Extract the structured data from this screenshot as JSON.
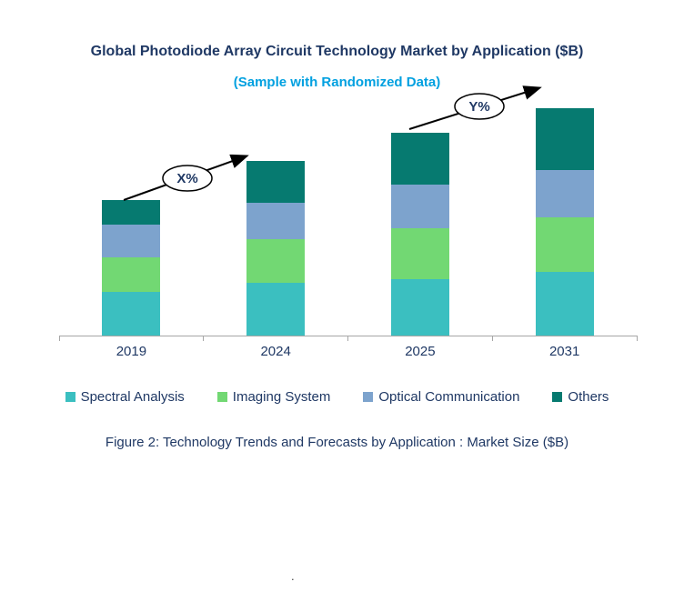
{
  "chart": {
    "title": "Global Photodiode Array Circuit Technology Market by Application ($B)",
    "subtitle": "(Sample with Randomized Data)",
    "caption": "Figure 2: Technology  Trends  and Forecasts by Application : Market Size ($B)",
    "footnote_dot": ".",
    "colors": {
      "title_text": "#1F3864",
      "subtitle_text": "#00A0E0",
      "axis_line": "#A6A6A6",
      "annotation_arrow": "#000000"
    }
  },
  "chart_data": {
    "type": "bar",
    "stacked": true,
    "title": "Global Photodiode Array Circuit Technology Market by Application ($B)",
    "subtitle": "(Sample with Randomized Data)",
    "units": "$B (randomized sample data, no value axis shown)",
    "xlabel": "",
    "ylabel": "",
    "grid": false,
    "legend_position": "bottom",
    "categories": [
      "2019",
      "2024",
      "2025",
      "2031"
    ],
    "series": [
      {
        "name": "Spectral Analysis",
        "color": "#3BBFC0",
        "values": [
          1.0,
          1.2,
          1.3,
          1.45
        ]
      },
      {
        "name": "Imaging System",
        "color": "#72D873",
        "values": [
          0.8,
          1.0,
          1.15,
          1.25
        ]
      },
      {
        "name": "Optical Communication",
        "color": "#7DA3CD",
        "values": [
          0.75,
          0.85,
          1.0,
          1.1
        ]
      },
      {
        "name": "Others",
        "color": "#067A70",
        "values": [
          0.55,
          0.95,
          1.2,
          1.4
        ]
      }
    ],
    "totals": [
      3.1,
      4.0,
      4.65,
      5.2
    ],
    "annotations": [
      {
        "label": "X%",
        "between": [
          "2019",
          "2024"
        ]
      },
      {
        "label": "Y%",
        "between": [
          "2025",
          "2031"
        ]
      }
    ]
  }
}
